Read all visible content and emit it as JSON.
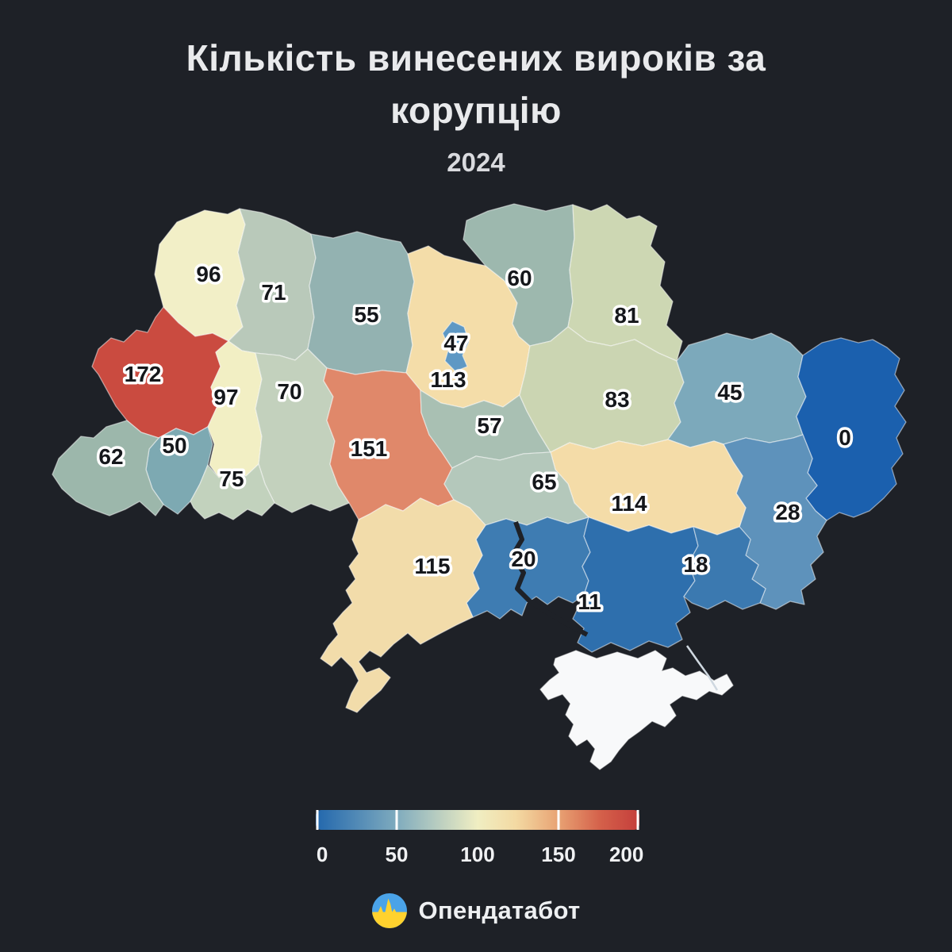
{
  "title": {
    "line1": "Кількість винесених вироків за",
    "line2": "корупцію",
    "year": "2024"
  },
  "map": {
    "description": "choropleth of Ukraine oblasts, corruption verdicts 2024",
    "regions": [
      {
        "id": "volyn",
        "value": "96",
        "color": "#f2efc7"
      },
      {
        "id": "rivne",
        "value": "71",
        "color": "#b9c9ba"
      },
      {
        "id": "zhytomyr",
        "value": "55",
        "color": "#93b2b1"
      },
      {
        "id": "kyiv-oblast",
        "value": "113",
        "color": "#f4dda9"
      },
      {
        "id": "kyiv-city",
        "value": "47",
        "color": "#5e98c4"
      },
      {
        "id": "chernihiv",
        "value": "60",
        "color": "#9db8ae"
      },
      {
        "id": "sumy",
        "value": "81",
        "color": "#cdd7b3"
      },
      {
        "id": "lviv",
        "value": "172",
        "color": "#ca4b40"
      },
      {
        "id": "ternopil",
        "value": "97",
        "color": "#f2efc4"
      },
      {
        "id": "khmelnytskyi",
        "value": "70",
        "color": "#c3d1bd"
      },
      {
        "id": "vinnytsia",
        "value": "151",
        "color": "#e0886a"
      },
      {
        "id": "cherkasy",
        "value": "57",
        "color": "#a9c0b3"
      },
      {
        "id": "poltava",
        "value": "83",
        "color": "#cbd5b2"
      },
      {
        "id": "kharkiv",
        "value": "45",
        "color": "#7ca9bb"
      },
      {
        "id": "luhansk",
        "value": "0",
        "color": "#1b60ae"
      },
      {
        "id": "donetsk",
        "value": "28",
        "color": "#5e92bb"
      },
      {
        "id": "dnipropetrovsk",
        "value": "114",
        "color": "#f4dca8"
      },
      {
        "id": "kirovohrad",
        "value": "65",
        "color": "#b4c8bb"
      },
      {
        "id": "mykolaiv",
        "value": "20",
        "color": "#3e7cb2"
      },
      {
        "id": "odesa",
        "value": "115",
        "color": "#f2dcaa"
      },
      {
        "id": "kherson",
        "value": "11",
        "color": "#2e6fad"
      },
      {
        "id": "zaporizhzhia",
        "value": "18",
        "color": "#3b79b0"
      },
      {
        "id": "ivano-frankivsk",
        "value": "50",
        "color": "#7da9b2"
      },
      {
        "id": "zakarpattia",
        "value": "62",
        "color": "#9cb7ab"
      },
      {
        "id": "chernivtsi",
        "value": "75",
        "color": "#c2d2bd"
      },
      {
        "id": "crimea",
        "value": "",
        "color": "#f8f9fa"
      }
    ]
  },
  "legend": {
    "ticks": [
      "0",
      "50",
      "100",
      "150",
      "200"
    ],
    "tick_line_positions_pct": [
      0.4,
      25,
      75,
      99.6
    ],
    "gradient_stops": [
      [
        "0%",
        "#2267ad"
      ],
      [
        "25%",
        "#7fabbe"
      ],
      [
        "50%",
        "#f0eec2"
      ],
      [
        "62%",
        "#f3d9a2"
      ],
      [
        "75%",
        "#e8a273"
      ],
      [
        "88%",
        "#d4604a"
      ],
      [
        "100%",
        "#c43e3b"
      ]
    ]
  },
  "footer": {
    "brand": "Опендатабот",
    "logo_blue": "#4aa3e8",
    "logo_yellow": "#ffd22e"
  },
  "colors": {
    "background": "#1e2127",
    "region_border": "rgba(255,255,255,0.5)",
    "label_fill": "#15171b",
    "label_halo": "#ffffff"
  }
}
